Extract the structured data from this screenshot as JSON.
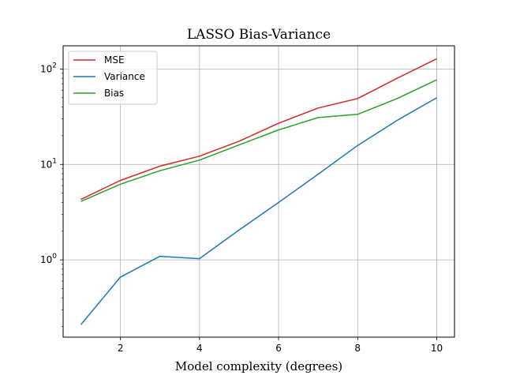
{
  "chart_data": {
    "type": "line",
    "title": "LASSO Bias-Variance",
    "xlabel": "Model complexity (degrees)",
    "ylabel": "",
    "y_scale": "log",
    "xlim": [
      0.55,
      10.45
    ],
    "ylim": [
      0.155,
      175
    ],
    "grid": true,
    "legend_position": "upper-left",
    "x": [
      1,
      2,
      3,
      4,
      5,
      6,
      7,
      8,
      9,
      10
    ],
    "x_ticks": [
      2,
      4,
      6,
      8,
      10
    ],
    "x_tick_labels": [
      "2",
      "4",
      "6",
      "8",
      "10"
    ],
    "y_ticks": [
      1,
      10,
      100
    ],
    "y_tick_labels": [
      {
        "base": "10",
        "exp": "0"
      },
      {
        "base": "10",
        "exp": "1"
      },
      {
        "base": "10",
        "exp": "2"
      }
    ],
    "series": [
      {
        "name": "MSE",
        "color": "#d62728",
        "values": [
          4.3,
          6.8,
          9.6,
          12.2,
          17.5,
          27,
          39,
          49,
          80,
          128
        ]
      },
      {
        "name": "Variance",
        "color": "#1f77b4",
        "values": [
          0.21,
          0.66,
          1.09,
          1.03,
          2.05,
          4.0,
          7.9,
          15.8,
          29,
          50
        ]
      },
      {
        "name": "Bias",
        "color": "#2ca02c",
        "values": [
          4.1,
          6.2,
          8.6,
          11.1,
          16,
          23,
          31,
          33.5,
          49,
          77
        ]
      }
    ]
  }
}
